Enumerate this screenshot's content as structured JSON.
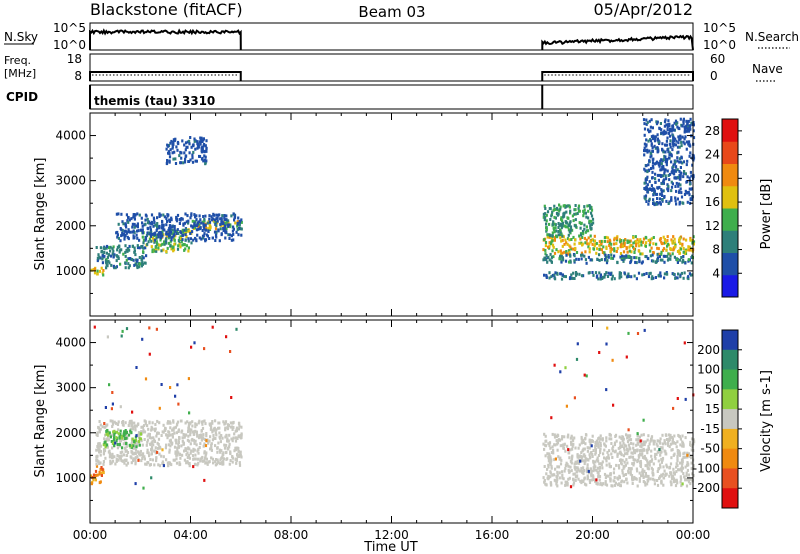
{
  "header": {
    "title_left": "Blackstone (fitACF)",
    "title_center": "Beam 03",
    "title_right": "05/Apr/2012"
  },
  "top_panels": {
    "nsky": {
      "label": "N.Sky",
      "ticks": [
        "10^5",
        "10^0"
      ],
      "right_label": "N.Search",
      "right_ticks": [
        "10^5",
        "10^0"
      ]
    },
    "freq": {
      "label_top": "Freq.",
      "label_bottom": "[MHz]",
      "ticks": [
        "18",
        "8"
      ],
      "right_label": "Nave",
      "right_ticks": [
        "60",
        "0"
      ]
    },
    "cpid": {
      "label": "CPID",
      "text": "themis (tau) 3310"
    }
  },
  "operating_periods_hours": [
    [
      0,
      6
    ],
    [
      18,
      24
    ]
  ],
  "chart_data": [
    {
      "type": "heatmap",
      "name": "power",
      "xlabel": "",
      "ylabel": "Slant Range [km]",
      "xlim": [
        0,
        24
      ],
      "ylim": [
        0,
        4500
      ],
      "yticks": [
        "1000",
        "2000",
        "3000",
        "4000"
      ],
      "colorbar": {
        "label": "Power [dB]",
        "ticks": [
          "4",
          "8",
          "12",
          "16",
          "20",
          "24",
          "28"
        ],
        "range": [
          0,
          30
        ]
      },
      "colors": [
        "#1a1ae6",
        "#1f4fa8",
        "#2e7f7a",
        "#3fae4c",
        "#e0c010",
        "#f08a10",
        "#e8481a",
        "#e01010"
      ],
      "bands": [
        {
          "t": [
            0.0,
            0.5
          ],
          "r": [
            900,
            1100
          ],
          "power": [
            14,
            20
          ]
        },
        {
          "t": [
            0.2,
            2.2
          ],
          "r": [
            1100,
            1600
          ],
          "power": [
            6,
            12
          ]
        },
        {
          "t": [
            2.0,
            4.0
          ],
          "r": [
            1450,
            1950
          ],
          "power": [
            10,
            16
          ]
        },
        {
          "t": [
            4.0,
            6.0
          ],
          "r": [
            1950,
            2150
          ],
          "power": [
            12,
            20
          ]
        },
        {
          "t": [
            1.0,
            6.0
          ],
          "r": [
            1700,
            2300
          ],
          "power": [
            4,
            8
          ]
        },
        {
          "t": [
            3.0,
            4.6
          ],
          "r": [
            3400,
            4000
          ],
          "power": [
            4,
            8
          ]
        },
        {
          "t": [
            18.0,
            24.0
          ],
          "r": [
            1400,
            1800
          ],
          "power": [
            12,
            22
          ]
        },
        {
          "t": [
            18.0,
            24.0
          ],
          "r": [
            1200,
            1400
          ],
          "power": [
            6,
            12
          ]
        },
        {
          "t": [
            18.0,
            24.0
          ],
          "r": [
            850,
            1000
          ],
          "power": [
            6,
            10
          ]
        },
        {
          "t": [
            18.0,
            20.0
          ],
          "r": [
            1800,
            2500
          ],
          "power": [
            8,
            14
          ]
        },
        {
          "t": [
            22.0,
            24.0
          ],
          "r": [
            2500,
            4400
          ],
          "power": [
            4,
            8
          ]
        }
      ]
    },
    {
      "type": "heatmap",
      "name": "velocity",
      "xlabel": "Time UT",
      "ylabel": "Slant Range [km]",
      "xlim": [
        0,
        24
      ],
      "ylim": [
        0,
        4500
      ],
      "xticks": [
        "00:00",
        "04:00",
        "08:00",
        "12:00",
        "16:00",
        "20:00",
        "00:00"
      ],
      "yticks": [
        "1000",
        "2000",
        "3000",
        "4000"
      ],
      "colorbar": {
        "label": "Velocity [m s-1]",
        "ticks": [
          "200",
          "100",
          "50",
          "15",
          "-15",
          "-50",
          "-100",
          "-200"
        ]
      },
      "colors": [
        "#1f3fa8",
        "#2e8a6a",
        "#3fae4c",
        "#90d040",
        "#c8c8c0",
        "#f0b020",
        "#f08a10",
        "#e85020",
        "#e01010"
      ],
      "bands": [
        {
          "t": [
            0.0,
            0.5
          ],
          "r": [
            900,
            1300
          ],
          "velocity": [
            -100,
            -15
          ]
        },
        {
          "t": [
            0.2,
            6.0
          ],
          "r": [
            1300,
            2300
          ],
          "velocity": [
            -15,
            15
          ]
        },
        {
          "t": [
            0.5,
            2.0
          ],
          "r": [
            1700,
            2100
          ],
          "velocity": [
            15,
            50
          ]
        },
        {
          "t": [
            18.0,
            24.0
          ],
          "r": [
            1400,
            2000
          ],
          "velocity": [
            -15,
            15
          ]
        },
        {
          "t": [
            18.0,
            24.0
          ],
          "r": [
            850,
            1400
          ],
          "velocity": [
            -15,
            15
          ]
        }
      ]
    }
  ]
}
